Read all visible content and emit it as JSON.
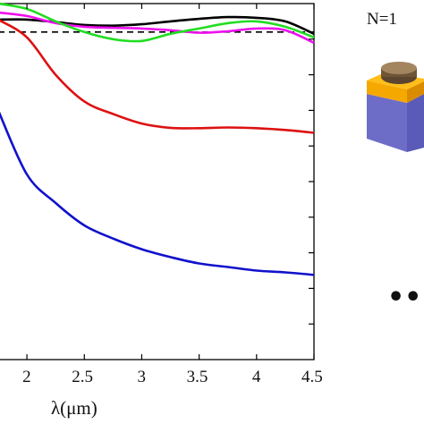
{
  "chart_data": {
    "type": "line",
    "xlabel": "λ(μm)",
    "ylabel": "",
    "xlim": [
      1.75,
      4.5
    ],
    "ylim": [
      0,
      1
    ],
    "x_ticks": [
      "2",
      "2.5",
      "3",
      "3.5",
      "4",
      "4.5"
    ],
    "grid": false,
    "reference_line": {
      "style": "dashed",
      "color": "#000000",
      "y": 0.92
    },
    "series": [
      {
        "color": "#000000",
        "x": [
          1.75,
          2.0,
          2.25,
          2.5,
          2.75,
          3.0,
          3.25,
          3.5,
          3.75,
          4.0,
          4.25,
          4.5
        ],
        "values": [
          0.955,
          0.955,
          0.948,
          0.94,
          0.938,
          0.942,
          0.95,
          0.957,
          0.962,
          0.96,
          0.95,
          0.915
        ]
      },
      {
        "color": "#ee11ee",
        "x": [
          1.75,
          2.0,
          2.25,
          2.5,
          2.75,
          3.0,
          3.25,
          3.5,
          3.75,
          4.0,
          4.25,
          4.5
        ],
        "values": [
          0.975,
          0.965,
          0.945,
          0.935,
          0.932,
          0.93,
          0.925,
          0.918,
          0.922,
          0.93,
          0.925,
          0.89
        ]
      },
      {
        "color": "#22dd22",
        "x": [
          1.75,
          2.0,
          2.25,
          2.5,
          2.75,
          3.0,
          3.25,
          3.5,
          3.75,
          4.0,
          4.25,
          4.5
        ],
        "values": [
          1.0,
          0.985,
          0.95,
          0.92,
          0.9,
          0.895,
          0.915,
          0.93,
          0.945,
          0.95,
          0.935,
          0.905
        ]
      },
      {
        "color": "#dd1111",
        "x": [
          1.75,
          2.0,
          2.25,
          2.5,
          2.75,
          3.0,
          3.25,
          3.5,
          3.75,
          4.0,
          4.25,
          4.5
        ],
        "values": [
          0.955,
          0.905,
          0.8,
          0.725,
          0.69,
          0.663,
          0.651,
          0.65,
          0.652,
          0.65,
          0.645,
          0.637
        ]
      },
      {
        "color": "#1111cc",
        "x": [
          1.75,
          2.0,
          2.25,
          2.5,
          2.75,
          3.0,
          3.25,
          3.5,
          3.75,
          4.0,
          4.25,
          4.5
        ],
        "values": [
          0.7,
          0.52,
          0.44,
          0.377,
          0.34,
          0.31,
          0.288,
          0.27,
          0.26,
          0.25,
          0.245,
          0.238
        ]
      }
    ]
  },
  "inset": {
    "label": "N=1",
    "ellipsis": "•••",
    "colors": {
      "cap": "#8b6b4a",
      "gold": "#f5a800",
      "top_face": "#7a7ad8",
      "front_face": "#6d6dc8",
      "side_face": "#5555aa"
    }
  }
}
